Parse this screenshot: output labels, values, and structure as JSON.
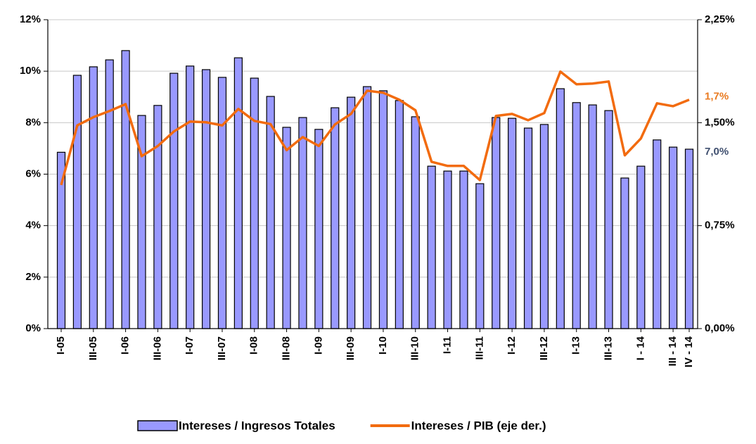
{
  "chart_data": {
    "type": "bar_line",
    "categories": [
      "I-05",
      null,
      "III-05",
      null,
      "I-06",
      null,
      "III-06",
      null,
      "I-07",
      null,
      "III-07",
      null,
      "I-08",
      null,
      "III-08",
      null,
      "I-09",
      null,
      "III-09",
      null,
      "I-10",
      null,
      "III-10",
      null,
      "I-11",
      null,
      "III-11",
      null,
      "I-12",
      null,
      "III-12",
      null,
      "I-13",
      null,
      "III-13",
      null,
      "I - 14",
      null,
      "III - 14",
      "IV - 14"
    ],
    "series": [
      {
        "name": "Intereses / Ingresos Totales",
        "type": "bar",
        "color": "#9999ff",
        "axis": "y",
        "values": [
          6.85,
          9.84,
          10.17,
          10.44,
          10.8,
          8.28,
          8.67,
          9.92,
          10.2,
          10.06,
          9.76,
          10.52,
          9.73,
          9.02,
          7.82,
          8.2,
          7.74,
          8.58,
          8.99,
          9.4,
          9.24,
          8.86,
          8.23,
          6.31,
          6.12,
          6.12,
          5.63,
          8.2,
          8.17,
          7.79,
          7.93,
          9.32,
          8.78,
          8.69,
          8.47,
          5.85,
          6.31,
          7.33,
          7.05,
          6.97
        ],
        "value_labels": [
          null,
          null,
          null,
          null,
          null,
          null,
          null,
          null,
          null,
          null,
          null,
          null,
          null,
          null,
          null,
          null,
          null,
          null,
          null,
          null,
          null,
          null,
          null,
          null,
          null,
          null,
          null,
          null,
          null,
          null,
          null,
          null,
          null,
          null,
          null,
          null,
          null,
          null,
          null,
          "7,0%"
        ],
        "label_color": "#3f4f6f"
      },
      {
        "name": "Intereses / PIB (eje der.)",
        "type": "line",
        "color": "#f26b0f",
        "axis": "y2",
        "values": [
          1.046,
          1.48,
          1.54,
          1.585,
          1.635,
          1.256,
          1.33,
          1.436,
          1.508,
          1.503,
          1.48,
          1.6,
          1.513,
          1.49,
          1.3,
          1.395,
          1.33,
          1.487,
          1.564,
          1.733,
          1.718,
          1.667,
          1.59,
          1.215,
          1.185,
          1.185,
          1.082,
          1.549,
          1.564,
          1.518,
          1.57,
          1.872,
          1.78,
          1.785,
          1.8,
          1.262,
          1.385,
          1.641,
          1.62,
          1.667
        ],
        "value_labels": [
          null,
          null,
          null,
          null,
          null,
          null,
          null,
          null,
          null,
          null,
          null,
          null,
          null,
          null,
          null,
          null,
          null,
          null,
          null,
          null,
          null,
          null,
          null,
          null,
          null,
          null,
          null,
          null,
          null,
          null,
          null,
          null,
          null,
          null,
          null,
          null,
          null,
          null,
          null,
          "1,7%"
        ],
        "label_color": "#e97a20"
      }
    ],
    "ylim": [
      0,
      12
    ],
    "yticks": [
      {
        "value": 0,
        "label": "0%"
      },
      {
        "value": 2,
        "label": "2%"
      },
      {
        "value": 4,
        "label": "4%"
      },
      {
        "value": 6,
        "label": "6%"
      },
      {
        "value": 8,
        "label": "8%"
      },
      {
        "value": 10,
        "label": "10%"
      },
      {
        "value": 12,
        "label": "12%"
      }
    ],
    "y2lim": [
      0,
      2.25
    ],
    "y2ticks": [
      {
        "value": 0,
        "label": "0,00%"
      },
      {
        "value": 0.75,
        "label": "0,75%"
      },
      {
        "value": 1.5,
        "label": "1,50%"
      },
      {
        "value": 2.25,
        "label": "2,25%"
      }
    ],
    "grid": true,
    "legend": "bottom"
  }
}
